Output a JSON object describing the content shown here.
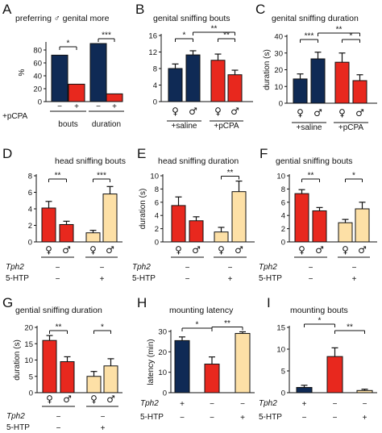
{
  "colors": {
    "navy": "#0f2a55",
    "red": "#e8281e",
    "tan": "#fde0a6",
    "black": "#111111"
  },
  "chart_data": [
    {
      "id": "A",
      "type": "bar",
      "title": "preferring ♂ genital more",
      "ylabel": "%",
      "ylim": [
        0,
        90
      ],
      "yticks": [
        "0",
        "20",
        "40",
        "60",
        "80"
      ],
      "bars": [
        {
          "value": 72,
          "error": 0,
          "color": "navy",
          "sym": "−"
        },
        {
          "value": 27,
          "error": 0,
          "color": "red",
          "sym": "+"
        },
        {
          "value": 90,
          "error": 0,
          "color": "navy",
          "sym": "−"
        },
        {
          "value": 12,
          "error": 0,
          "color": "red",
          "sym": "+"
        }
      ],
      "row_labels": [
        "+pCPA"
      ],
      "groups": [
        {
          "label": "bouts",
          "from": 0,
          "to": 1
        },
        {
          "label": "duration",
          "from": 2,
          "to": 3
        }
      ],
      "sig": [
        {
          "from": 0,
          "to": 1,
          "level": 0,
          "text": "*"
        },
        {
          "from": 2,
          "to": 3,
          "level": 0,
          "text": "***"
        }
      ]
    },
    {
      "id": "B",
      "type": "bar",
      "title": "genital sniffing bouts",
      "ylabel": "",
      "ylim": [
        0,
        16
      ],
      "yticks": [
        "0",
        "4",
        "8",
        "12",
        "16"
      ],
      "bars": [
        {
          "value": 8.0,
          "error": 1.1,
          "color": "navy",
          "sym": "♀"
        },
        {
          "value": 11.3,
          "error": 1.0,
          "color": "navy",
          "sym": "♂"
        },
        {
          "value": 10.0,
          "error": 1.5,
          "color": "red",
          "sym": "♀"
        },
        {
          "value": 6.5,
          "error": 1.1,
          "color": "red",
          "sym": "♂"
        }
      ],
      "row_labels": [],
      "groups": [
        {
          "label": "+saline",
          "from": 0,
          "to": 1
        },
        {
          "label": "+pCPA",
          "from": 2,
          "to": 3
        }
      ],
      "sig": [
        {
          "from": 0,
          "to": 1,
          "level": 0,
          "text": "*"
        },
        {
          "from": 2,
          "to": 3,
          "level": 0,
          "text": "**"
        },
        {
          "from": 1,
          "to": 3,
          "level": 1,
          "text": "**"
        }
      ]
    },
    {
      "id": "C",
      "type": "bar",
      "title": "genital sniffing duration",
      "ylabel": "duration (s)",
      "ylim": [
        0,
        40
      ],
      "yticks": [
        "0",
        "10",
        "20",
        "30",
        "40"
      ],
      "bars": [
        {
          "value": 14.5,
          "error": 3.0,
          "color": "navy",
          "sym": "♀"
        },
        {
          "value": 26.5,
          "error": 4.0,
          "color": "navy",
          "sym": "♂"
        },
        {
          "value": 24.5,
          "error": 5.5,
          "color": "red",
          "sym": "♀"
        },
        {
          "value": 13.5,
          "error": 3.5,
          "color": "red",
          "sym": "♂"
        }
      ],
      "row_labels": [],
      "groups": [
        {
          "label": "+saline",
          "from": 0,
          "to": 1
        },
        {
          "label": "+pCPA",
          "from": 2,
          "to": 3
        }
      ],
      "sig": [
        {
          "from": 0,
          "to": 1,
          "level": 0,
          "text": "***"
        },
        {
          "from": 2,
          "to": 3,
          "level": 0,
          "text": "*"
        },
        {
          "from": 1,
          "to": 3,
          "level": 1,
          "text": "**"
        }
      ]
    },
    {
      "id": "D",
      "type": "bar",
      "title": "head sniffing bouts",
      "ylabel": "",
      "ylim": [
        0,
        8
      ],
      "yticks": [
        "0",
        "2",
        "4",
        "6",
        "8"
      ],
      "bars": [
        {
          "value": 4.1,
          "error": 0.8,
          "color": "red",
          "sym": "♀",
          "tph": "−",
          "htp": "−"
        },
        {
          "value": 2.1,
          "error": 0.4,
          "color": "red",
          "sym": "♂",
          "tph": "",
          "htp": ""
        },
        {
          "value": 1.1,
          "error": 0.3,
          "color": "tan",
          "sym": "♀",
          "tph": "−",
          "htp": "+"
        },
        {
          "value": 5.8,
          "error": 0.9,
          "color": "tan",
          "sym": "♂",
          "tph": "",
          "htp": ""
        }
      ],
      "row_labels": [
        "Tph2",
        "5-HTP"
      ],
      "groups": [],
      "sig": [
        {
          "from": 0,
          "to": 1,
          "level": 0,
          "text": "**"
        },
        {
          "from": 2,
          "to": 3,
          "level": 0,
          "text": "***"
        }
      ]
    },
    {
      "id": "E",
      "type": "bar",
      "title": "head sniffing duration",
      "ylabel": "duration (s)",
      "ylim": [
        0,
        10
      ],
      "yticks": [
        "0",
        "2",
        "4",
        "6",
        "8",
        "10"
      ],
      "bars": [
        {
          "value": 5.5,
          "error": 1.3,
          "color": "red",
          "sym": "♀",
          "tph": "−",
          "htp": "−"
        },
        {
          "value": 3.2,
          "error": 0.6,
          "color": "red",
          "sym": "♂",
          "tph": "",
          "htp": ""
        },
        {
          "value": 1.5,
          "error": 0.7,
          "color": "tan",
          "sym": "♀",
          "tph": "−",
          "htp": "+"
        },
        {
          "value": 7.6,
          "error": 1.6,
          "color": "tan",
          "sym": "♂",
          "tph": "",
          "htp": ""
        }
      ],
      "row_labels": [
        "Tph2",
        "5-HTP"
      ],
      "groups": [],
      "sig": [
        {
          "from": 2,
          "to": 3,
          "level": 0,
          "text": "**"
        }
      ]
    },
    {
      "id": "F",
      "type": "bar",
      "title": "gential sniffing bouts",
      "ylabel": "",
      "ylim": [
        0,
        10
      ],
      "yticks": [
        "0",
        "2",
        "4",
        "6",
        "8",
        "10"
      ],
      "bars": [
        {
          "value": 7.3,
          "error": 0.6,
          "color": "red",
          "sym": "♀",
          "tph": "−",
          "htp": "−"
        },
        {
          "value": 4.7,
          "error": 0.5,
          "color": "red",
          "sym": "♂",
          "tph": "",
          "htp": ""
        },
        {
          "value": 2.9,
          "error": 0.5,
          "color": "tan",
          "sym": "♀",
          "tph": "−",
          "htp": "+"
        },
        {
          "value": 5.0,
          "error": 1.0,
          "color": "tan",
          "sym": "♂",
          "tph": "",
          "htp": ""
        }
      ],
      "row_labels": [
        "Tph2",
        "5-HTP"
      ],
      "groups": [],
      "sig": [
        {
          "from": 0,
          "to": 1,
          "level": 0,
          "text": "**"
        },
        {
          "from": 2,
          "to": 3,
          "level": 0,
          "text": "*"
        }
      ]
    },
    {
      "id": "G",
      "type": "bar",
      "title": "gential sniffing duration",
      "ylabel": "duration (s)",
      "ylim": [
        0,
        20
      ],
      "yticks": [
        "0",
        "5",
        "10",
        "15",
        "20"
      ],
      "bars": [
        {
          "value": 16.0,
          "error": 1.5,
          "color": "red",
          "sym": "♀",
          "tph": "−",
          "htp": "−"
        },
        {
          "value": 9.5,
          "error": 1.5,
          "color": "red",
          "sym": "♂",
          "tph": "",
          "htp": ""
        },
        {
          "value": 5.0,
          "error": 1.5,
          "color": "tan",
          "sym": "♀",
          "tph": "−",
          "htp": "+"
        },
        {
          "value": 8.2,
          "error": 2.2,
          "color": "tan",
          "sym": "♂",
          "tph": "",
          "htp": ""
        }
      ],
      "row_labels": [
        "Tph2",
        "5-HTP"
      ],
      "groups": [],
      "sig": [
        {
          "from": 0,
          "to": 1,
          "level": 0,
          "text": "**"
        },
        {
          "from": 2,
          "to": 3,
          "level": 0,
          "text": "*"
        }
      ]
    },
    {
      "id": "H",
      "type": "bar",
      "title": "mounting latency",
      "ylabel": "latency (min)",
      "ylim": [
        0,
        30
      ],
      "yticks": [
        "0",
        "10",
        "20",
        "30"
      ],
      "bars": [
        {
          "value": 25.5,
          "error": 1.8,
          "color": "navy",
          "sym": "",
          "tph": "+",
          "htp": "−"
        },
        {
          "value": 14.0,
          "error": 3.5,
          "color": "red",
          "sym": "",
          "tph": "−",
          "htp": "−"
        },
        {
          "value": 29.0,
          "error": 0.8,
          "color": "tan",
          "sym": "",
          "tph": "−",
          "htp": "+"
        }
      ],
      "row_labels": [
        "Tph2",
        "5-HTP"
      ],
      "groups": [],
      "sig": [
        {
          "from": 0,
          "to": 1,
          "level": 1,
          "text": "*"
        },
        {
          "from": 1,
          "to": 2,
          "level": 0,
          "text": "**"
        }
      ]
    },
    {
      "id": "I",
      "type": "bar",
      "title": "mounting bouts",
      "ylabel": "",
      "ylim": [
        0,
        15
      ],
      "yticks": [
        "0",
        "5",
        "10",
        "15"
      ],
      "bars": [
        {
          "value": 1.2,
          "error": 0.5,
          "color": "navy",
          "sym": "",
          "tph": "+",
          "htp": "−"
        },
        {
          "value": 8.3,
          "error": 2.0,
          "color": "red",
          "sym": "",
          "tph": "−",
          "htp": "−"
        },
        {
          "value": 0.5,
          "error": 0.3,
          "color": "tan",
          "sym": "",
          "tph": "−",
          "htp": "+"
        }
      ],
      "row_labels": [
        "Tph2",
        "5-HTP"
      ],
      "groups": [],
      "sig": [
        {
          "from": 0,
          "to": 1,
          "level": 1,
          "text": "*"
        },
        {
          "from": 1,
          "to": 2,
          "level": 0,
          "text": "**"
        }
      ]
    }
  ]
}
